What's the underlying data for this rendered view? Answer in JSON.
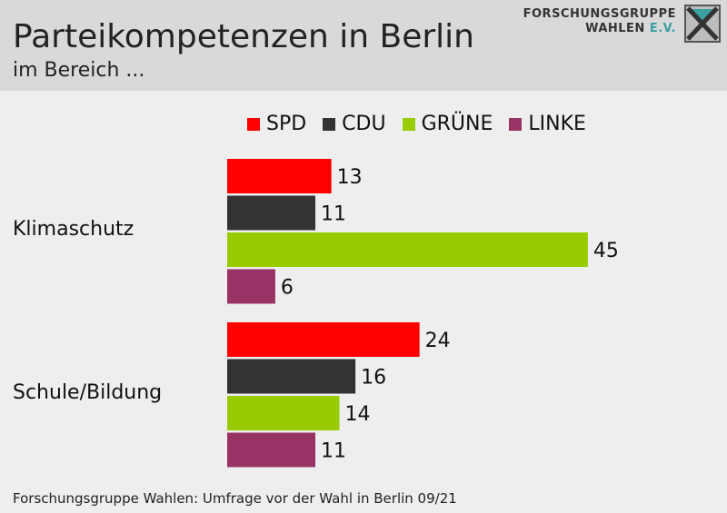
{
  "header": {
    "title": "Parteikompetenzen in Berlin",
    "subtitle": "im Bereich ...",
    "logo_line1": "FORSCHUNGSGRUPPE",
    "logo_line2": "WAHLEN",
    "logo_ev": "E.V."
  },
  "footer": "Forschungsgruppe Wahlen: Umfrage vor der Wahl in Berlin 09/21",
  "colors": {
    "SPD": "#ff0000",
    "CDU": "#333333",
    "GRUENE": "#99cc00",
    "LINKE": "#993366",
    "header_bg": "#d9d9d9",
    "background": "#eeeeee"
  },
  "chart_data": {
    "type": "bar",
    "orientation": "horizontal",
    "categories": [
      "Klimaschutz",
      "Schule/Bildung"
    ],
    "series": [
      {
        "name": "SPD",
        "color": "#ff0000",
        "values": [
          13,
          24
        ]
      },
      {
        "name": "CDU",
        "color": "#333333",
        "values": [
          11,
          16
        ]
      },
      {
        "name": "GRÜNE",
        "color": "#99cc00",
        "values": [
          45,
          14
        ]
      },
      {
        "name": "LINKE",
        "color": "#993366",
        "values": [
          6,
          11
        ]
      }
    ],
    "legend_position": "top",
    "grid": false
  }
}
